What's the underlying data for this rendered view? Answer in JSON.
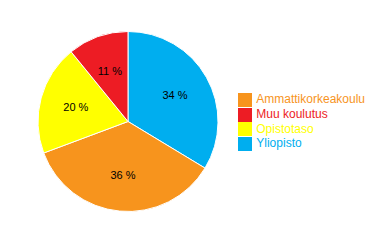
{
  "chart_data": {
    "type": "pie",
    "categories": [
      "Yliopisto",
      "Ammattikorkeakoulu",
      "Opistotaso",
      "Muu koulutus"
    ],
    "values": [
      34,
      36,
      20,
      11
    ],
    "value_labels": [
      "34 %",
      "36 %",
      "20 %",
      "11 %"
    ],
    "colors": [
      "#00AEEF",
      "#F7941D",
      "#FFFF00",
      "#ED1C24"
    ],
    "legend": "right"
  }
}
